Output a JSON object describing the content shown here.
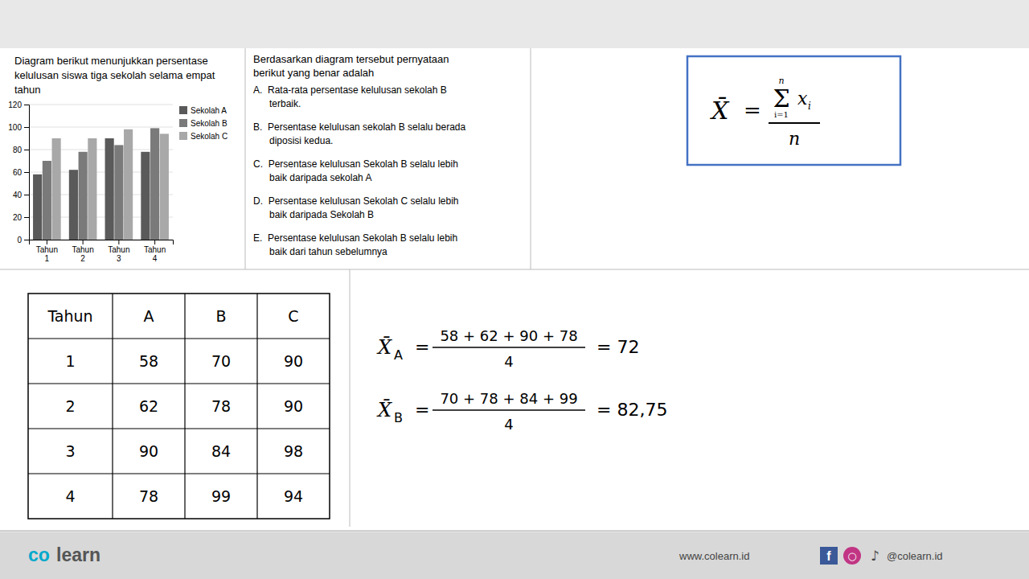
{
  "chart_data": {
    "type": "bar",
    "title": "Diagram berikut menunjukkan persentase\nkelulusan siswa tiga sekolah selama empat\ntahun",
    "categories": [
      "Tahun\n1",
      "Tahun\n2",
      "Tahun\n3",
      "Tahun\n4"
    ],
    "series": [
      {
        "name": "Sekolah A",
        "color": "#5a5a5a",
        "values": [
          58,
          62,
          90,
          78
        ]
      },
      {
        "name": "Sekolah B",
        "color": "#7a7a7a",
        "values": [
          70,
          78,
          84,
          99
        ]
      },
      {
        "name": "Sekolah C",
        "color": "#a8a8a8",
        "values": [
          90,
          90,
          98,
          94
        ]
      }
    ],
    "ylim": [
      0,
      120
    ],
    "yticks": [
      0,
      20,
      40,
      60,
      80,
      100,
      120
    ],
    "grid": true,
    "legend": "upper right"
  },
  "question": "Berdasarkan diagram tersebut pernyataan\nberikut yang benar adalah",
  "options": [
    "A.  Rata-rata persentase kelulusan sekolah B\n      terbaik.",
    "B.  Persentase kelulusan sekolah B selalu berada\n      diposisi kedua.",
    "C.  Persentase kelulusan Sekolah B selalu lebih\n      baik daripada sekolah A",
    "D.  Persentase kelulusan Sekolah C selalu lebih\n      baik daripada Sekolah B",
    "E.  Persentase kelulusan Sekolah B selalu lebih\n      baik dari tahun sebelumnya"
  ],
  "formula": {
    "lhs": "X̄",
    "equals": "=",
    "sum_upper": "n",
    "sum_symbol": "Σ",
    "sum_lower": "i=1",
    "term": "x",
    "term_index": "i",
    "denominator": "n"
  },
  "table": {
    "headers": [
      "Tahun",
      "A",
      "B",
      "C"
    ],
    "rows": [
      [
        1,
        58,
        70,
        90
      ],
      [
        2,
        62,
        78,
        90
      ],
      [
        3,
        90,
        84,
        98
      ],
      [
        4,
        78,
        99,
        94
      ]
    ]
  },
  "means": [
    {
      "symbol": "X̄",
      "subscript": "A",
      "equals": "=",
      "numerator": "58 + 62 + 90 + 78",
      "denominator": 4,
      "result": "= 72"
    },
    {
      "symbol": "X̄",
      "subscript": "B",
      "equals": "=",
      "numerator": "70 + 78 + 84 + 99",
      "denominator": 4,
      "result": "= 82,75"
    }
  ],
  "footer": {
    "brand_1": "co",
    "brand_2": "learn",
    "website": "www.colearn.id",
    "icons": [
      "f",
      "○",
      "♪"
    ],
    "social": "@colearn.id"
  }
}
